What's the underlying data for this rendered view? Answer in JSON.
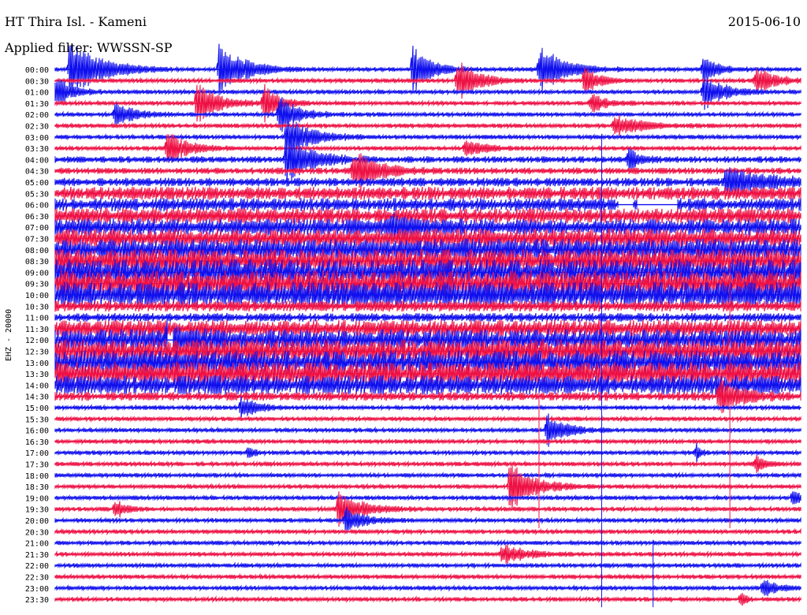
{
  "header": {
    "station": "HT Thira Isl. - Kameni",
    "date": "2015-06-10",
    "filter": "Applied filter: WWSSN-SP"
  },
  "chart_data": {
    "type": "line",
    "title": "HT Thira Isl. - Kameni",
    "date": "2015-06-10",
    "filter": "Applied filter: WWSSN-SP",
    "ylabel": "EHZ - 20000",
    "xlabel": "",
    "row_labels": [
      "00:00",
      "00:30",
      "01:00",
      "01:30",
      "02:00",
      "02:30",
      "03:00",
      "03:30",
      "04:00",
      "04:30",
      "05:00",
      "05:30",
      "06:00",
      "06:30",
      "07:00",
      "07:30",
      "08:00",
      "08:30",
      "09:00",
      "09:30",
      "10:00",
      "10:30",
      "11:00",
      "11:30",
      "12:00",
      "12:30",
      "13:00",
      "13:30",
      "14:00",
      "14:30",
      "15:00",
      "15:30",
      "16:00",
      "16:30",
      "17:00",
      "17:30",
      "18:00",
      "18:30",
      "19:00",
      "19:30",
      "20:00",
      "20:30",
      "21:00",
      "21:30",
      "22:00",
      "22:30",
      "23:00",
      "23:30"
    ],
    "series_colors": [
      "#1010ee",
      "#ee1144"
    ],
    "row_noise_level": [
      2,
      2,
      2,
      2,
      2,
      2,
      2,
      2,
      3,
      3,
      4,
      6,
      6,
      7,
      8,
      9,
      10,
      11,
      12,
      12,
      12,
      5,
      4,
      8,
      10,
      11,
      11,
      11,
      9,
      4,
      2,
      2,
      2,
      2,
      2,
      2,
      2,
      2,
      2,
      2,
      2,
      2,
      2,
      2,
      2,
      2,
      2,
      2
    ],
    "events": [
      {
        "row": 0,
        "x": 0.02,
        "amp": 36,
        "dur": 0.06
      },
      {
        "row": 0,
        "x": 0.22,
        "amp": 30,
        "dur": 0.05
      },
      {
        "row": 0,
        "x": 0.48,
        "amp": 26,
        "dur": 0.04
      },
      {
        "row": 0,
        "x": 0.65,
        "amp": 28,
        "dur": 0.05
      },
      {
        "row": 0,
        "x": 0.87,
        "amp": 16,
        "dur": 0.03
      },
      {
        "row": 1,
        "x": 0.54,
        "amp": 24,
        "dur": 0.04
      },
      {
        "row": 1,
        "x": 0.71,
        "amp": 18,
        "dur": 0.03
      },
      {
        "row": 1,
        "x": 0.94,
        "amp": 16,
        "dur": 0.04
      },
      {
        "row": 2,
        "x": 0.0,
        "amp": 20,
        "dur": 0.03
      },
      {
        "row": 2,
        "x": 0.87,
        "amp": 22,
        "dur": 0.04
      },
      {
        "row": 3,
        "x": 0.19,
        "amp": 26,
        "dur": 0.04
      },
      {
        "row": 3,
        "x": 0.28,
        "amp": 22,
        "dur": 0.03
      },
      {
        "row": 3,
        "x": 0.72,
        "amp": 12,
        "dur": 0.03
      },
      {
        "row": 4,
        "x": 0.08,
        "amp": 14,
        "dur": 0.04
      },
      {
        "row": 4,
        "x": 0.3,
        "amp": 22,
        "dur": 0.04
      },
      {
        "row": 5,
        "x": 0.75,
        "amp": 12,
        "dur": 0.06
      },
      {
        "row": 6,
        "x": 0.31,
        "amp": 24,
        "dur": 0.05
      },
      {
        "row": 7,
        "x": 0.15,
        "amp": 20,
        "dur": 0.04
      },
      {
        "row": 7,
        "x": 0.55,
        "amp": 10,
        "dur": 0.04
      },
      {
        "row": 8,
        "x": 0.31,
        "amp": 28,
        "dur": 0.05
      },
      {
        "row": 8,
        "x": 0.77,
        "amp": 14,
        "dur": 0.02
      },
      {
        "row": 9,
        "x": 0.4,
        "amp": 24,
        "dur": 0.05
      },
      {
        "row": 10,
        "x": 0.9,
        "amp": 16,
        "dur": 0.08
      },
      {
        "row": 14,
        "x": 0.45,
        "amp": 12,
        "dur": 0.03
      },
      {
        "row": 24,
        "x": 0.15,
        "amp": 16,
        "dur": 0.03
      },
      {
        "row": 29,
        "x": 0.89,
        "amp": 22,
        "dur": 0.04
      },
      {
        "row": 30,
        "x": 0.25,
        "amp": 14,
        "dur": 0.03
      },
      {
        "row": 32,
        "x": 0.66,
        "amp": 18,
        "dur": 0.04
      },
      {
        "row": 34,
        "x": 0.26,
        "amp": 8,
        "dur": 0.01
      },
      {
        "row": 34,
        "x": 0.86,
        "amp": 10,
        "dur": 0.01
      },
      {
        "row": 35,
        "x": 0.94,
        "amp": 10,
        "dur": 0.02
      },
      {
        "row": 37,
        "x": 0.61,
        "amp": 28,
        "dur": 0.05
      },
      {
        "row": 38,
        "x": 0.99,
        "amp": 10,
        "dur": 0.02
      },
      {
        "row": 39,
        "x": 0.08,
        "amp": 12,
        "dur": 0.02
      },
      {
        "row": 39,
        "x": 0.38,
        "amp": 20,
        "dur": 0.05
      },
      {
        "row": 40,
        "x": 0.39,
        "amp": 14,
        "dur": 0.04
      },
      {
        "row": 43,
        "x": 0.6,
        "amp": 12,
        "dur": 0.05
      },
      {
        "row": 46,
        "x": 0.95,
        "amp": 10,
        "dur": 0.03
      },
      {
        "row": 47,
        "x": 0.92,
        "amp": 8,
        "dur": 0.01
      }
    ],
    "spikes": [
      {
        "x": 0.733,
        "row_from": 6,
        "row_to": 47
      },
      {
        "x": 0.649,
        "row_from": 29,
        "row_to": 40
      },
      {
        "x": 0.802,
        "row_from": 42,
        "row_to": 47
      },
      {
        "x": 0.905,
        "row_from": 15,
        "row_to": 40
      }
    ],
    "gaps": [
      {
        "row": 12,
        "x0": 0.755,
        "x1": 0.775
      },
      {
        "row": 12,
        "x0": 0.782,
        "x1": 0.835
      },
      {
        "row": 24,
        "x0": 0.152,
        "x1": 0.158
      }
    ],
    "grid": false,
    "legend": "none"
  }
}
